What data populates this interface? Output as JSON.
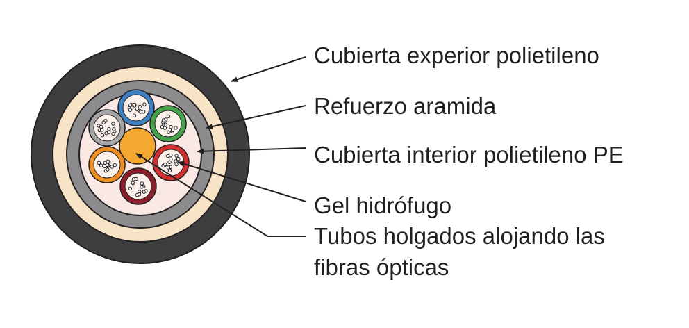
{
  "labels": {
    "outer_jacket": "Cubierta experior polietileno",
    "aramid": "Refuerzo aramida",
    "inner_jacket": "Cubierta interior polietileno PE",
    "gel": "Gel hidrófugo",
    "tubes_line1": "Tubos holgados alojando las",
    "tubes_line2": "fibras ópticas"
  },
  "colors": {
    "outer_jacket": "#3e3e40",
    "aramid": "#f7e4c7",
    "inner_jacket": "#8c8c8e",
    "core": "#f9e8e3",
    "central_member": "#f5a830",
    "outline": "#231f20",
    "tubes": [
      "#3e82c4",
      "#43a24a",
      "#d32f2f",
      "#8b1e2a",
      "#ef8f22",
      "#a6a6a6"
    ]
  }
}
